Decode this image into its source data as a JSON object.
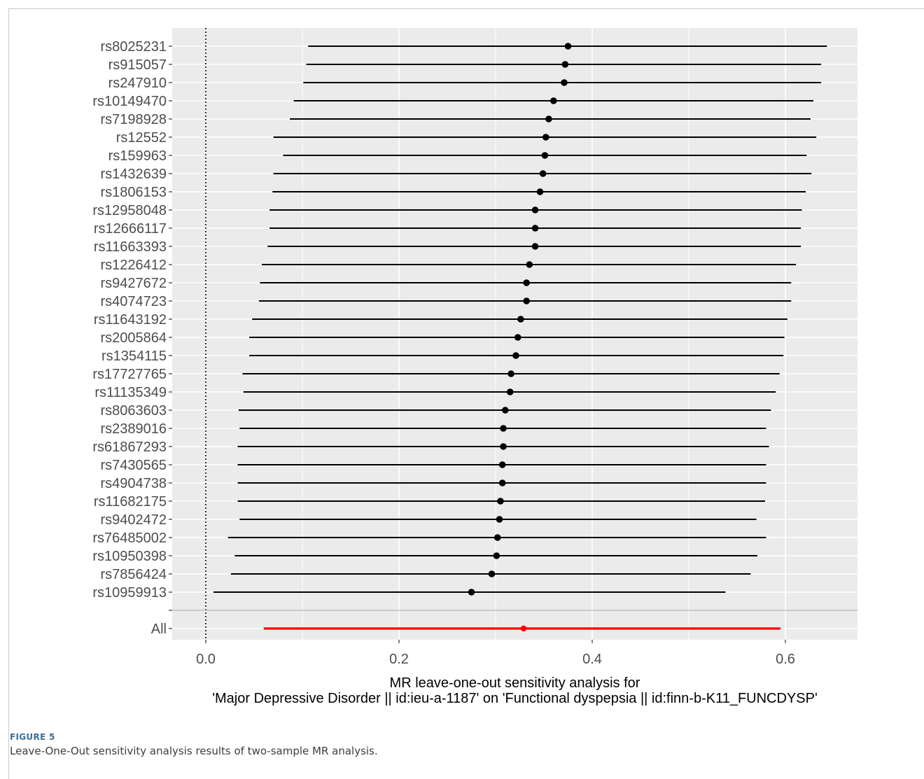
{
  "figure": {
    "label": "FIGURE 5",
    "caption": "Leave-One-Out sensitivity analysis results of two-sample MR analysis."
  },
  "chart_data": {
    "type": "forest",
    "xlabel_line1": "MR leave-one-out sensitivity analysis for",
    "xlabel_line2": "'Major Depressive Disorder || id:ieu-a-1187' on 'Functional dyspepsia || id:finn-b-K11_FUNCDYSP'",
    "xlim": [
      -0.055,
      0.675
    ],
    "xticks": [
      0.0,
      0.2,
      0.4,
      0.6
    ],
    "xtick_labels": [
      "0.0",
      "0.2",
      "0.4",
      "0.6"
    ],
    "reference_line_x": 0,
    "colors": {
      "panel": "#ebebeb",
      "grid": "#ffffff",
      "snp": "#000000",
      "overall": "#ff0000"
    },
    "snps": [
      {
        "label": "rs8025231",
        "estimate": 0.375,
        "lower": 0.106,
        "upper": 0.643
      },
      {
        "label": "rs915057",
        "estimate": 0.372,
        "lower": 0.104,
        "upper": 0.637
      },
      {
        "label": "rs247910",
        "estimate": 0.371,
        "lower": 0.101,
        "upper": 0.637
      },
      {
        "label": "rs10149470",
        "estimate": 0.36,
        "lower": 0.091,
        "upper": 0.629
      },
      {
        "label": "rs7198928",
        "estimate": 0.355,
        "lower": 0.087,
        "upper": 0.626
      },
      {
        "label": "rs12552",
        "estimate": 0.352,
        "lower": 0.07,
        "upper": 0.632
      },
      {
        "label": "rs159963",
        "estimate": 0.351,
        "lower": 0.08,
        "upper": 0.622
      },
      {
        "label": "rs1432639",
        "estimate": 0.349,
        "lower": 0.07,
        "upper": 0.627
      },
      {
        "label": "rs1806153",
        "estimate": 0.346,
        "lower": 0.069,
        "upper": 0.621
      },
      {
        "label": "rs12958048",
        "estimate": 0.341,
        "lower": 0.066,
        "upper": 0.617
      },
      {
        "label": "rs12666117",
        "estimate": 0.341,
        "lower": 0.066,
        "upper": 0.616
      },
      {
        "label": "rs11663393",
        "estimate": 0.341,
        "lower": 0.064,
        "upper": 0.616
      },
      {
        "label": "rs1226412",
        "estimate": 0.335,
        "lower": 0.058,
        "upper": 0.611
      },
      {
        "label": "rs9427672",
        "estimate": 0.332,
        "lower": 0.056,
        "upper": 0.606
      },
      {
        "label": "rs4074723",
        "estimate": 0.332,
        "lower": 0.055,
        "upper": 0.606
      },
      {
        "label": "rs11643192",
        "estimate": 0.326,
        "lower": 0.048,
        "upper": 0.602
      },
      {
        "label": "rs2005864",
        "estimate": 0.323,
        "lower": 0.045,
        "upper": 0.599
      },
      {
        "label": "rs1354115",
        "estimate": 0.321,
        "lower": 0.045,
        "upper": 0.598
      },
      {
        "label": "rs17727765",
        "estimate": 0.316,
        "lower": 0.038,
        "upper": 0.594
      },
      {
        "label": "rs11135349",
        "estimate": 0.315,
        "lower": 0.039,
        "upper": 0.59
      },
      {
        "label": "rs8063603",
        "estimate": 0.31,
        "lower": 0.034,
        "upper": 0.585
      },
      {
        "label": "rs2389016",
        "estimate": 0.308,
        "lower": 0.035,
        "upper": 0.58
      },
      {
        "label": "rs61867293",
        "estimate": 0.308,
        "lower": 0.033,
        "upper": 0.583
      },
      {
        "label": "rs7430565",
        "estimate": 0.307,
        "lower": 0.033,
        "upper": 0.58
      },
      {
        "label": "rs4904738",
        "estimate": 0.307,
        "lower": 0.033,
        "upper": 0.58
      },
      {
        "label": "rs11682175",
        "estimate": 0.305,
        "lower": 0.033,
        "upper": 0.579
      },
      {
        "label": "rs9402472",
        "estimate": 0.304,
        "lower": 0.035,
        "upper": 0.57
      },
      {
        "label": "rs76485002",
        "estimate": 0.302,
        "lower": 0.023,
        "upper": 0.58
      },
      {
        "label": "rs10950398",
        "estimate": 0.301,
        "lower": 0.03,
        "upper": 0.571
      },
      {
        "label": "rs7856424",
        "estimate": 0.296,
        "lower": 0.026,
        "upper": 0.564
      },
      {
        "label": "rs10959913",
        "estimate": 0.275,
        "lower": 0.008,
        "upper": 0.538
      }
    ],
    "overall": {
      "label": "All",
      "estimate": 0.329,
      "lower": 0.06,
      "upper": 0.595
    }
  }
}
